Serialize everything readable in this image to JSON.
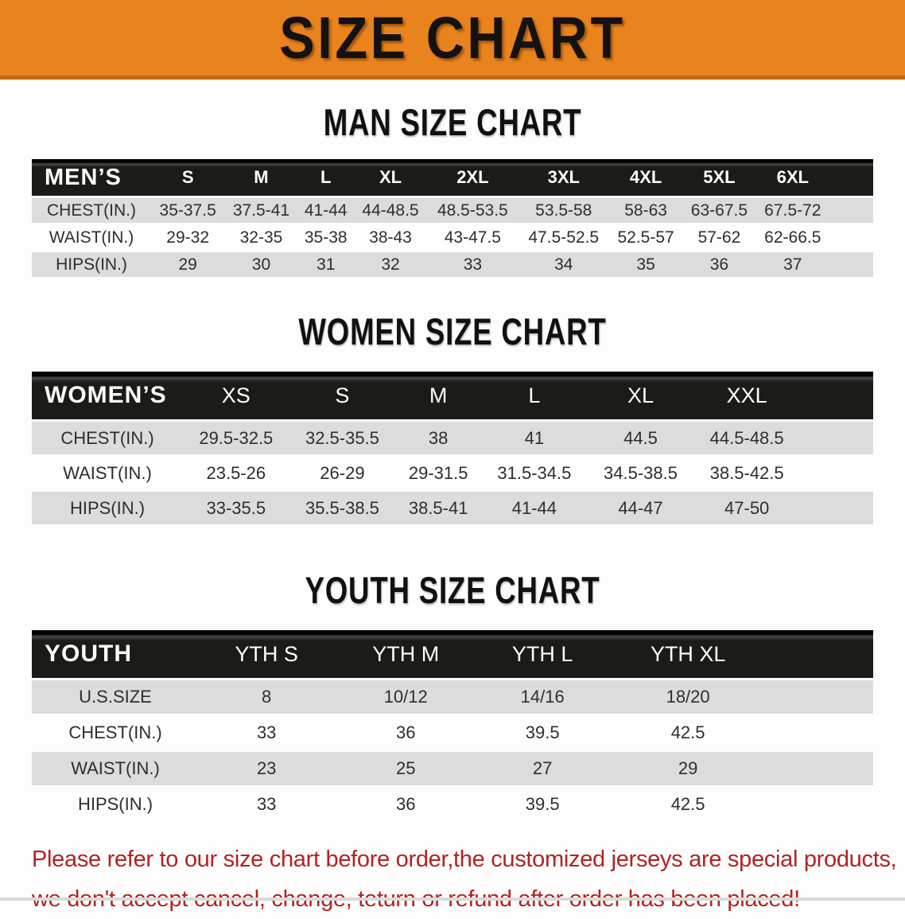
{
  "banner": {
    "title": "SIZE CHART",
    "bg_color": "#E8831D",
    "text_color": "#141210"
  },
  "sections": [
    {
      "heading": "MAN SIZE CHART",
      "header_label": "MEN’S",
      "columns": [
        "S",
        "M",
        "L",
        "XL",
        "2XL",
        "3XL",
        "4XL",
        "5XL",
        "6XL"
      ],
      "rows": [
        {
          "label": "CHEST(IN.)",
          "values": [
            "35-37.5",
            "37.5-41",
            "41-44",
            "44-48.5",
            "48.5-53.5",
            "53.5-58",
            "58-63",
            "63-67.5",
            "67.5-72"
          ]
        },
        {
          "label": "WAIST(IN.)",
          "values": [
            "29-32",
            "32-35",
            "35-38",
            "38-43",
            "43-47.5",
            "47.5-52.5",
            "52.5-57",
            "57-62",
            "62-66.5"
          ]
        },
        {
          "label": "HIPS(IN.)",
          "values": [
            "29",
            "30",
            "31",
            "32",
            "33",
            "34",
            "35",
            "36",
            "37"
          ]
        }
      ]
    },
    {
      "heading": "WOMEN SIZE CHART",
      "header_label": "WOMEN’S",
      "columns": [
        "XS",
        "S",
        "M",
        "L",
        "XL",
        "XXL"
      ],
      "rows": [
        {
          "label": "CHEST(IN.)",
          "values": [
            "29.5-32.5",
            "32.5-35.5",
            "38",
            "41",
            "44.5",
            "44.5-48.5"
          ]
        },
        {
          "label": "WAIST(IN.)",
          "values": [
            "23.5-26",
            "26-29",
            "29-31.5",
            "31.5-34.5",
            "34.5-38.5",
            "38.5-42.5"
          ]
        },
        {
          "label": "HIPS(IN.)",
          "values": [
            "33-35.5",
            "35.5-38.5",
            "38.5-41",
            "41-44",
            "44-47",
            "47-50"
          ]
        }
      ]
    },
    {
      "heading": "YOUTH SIZE CHART",
      "header_label": "YOUTH",
      "columns": [
        "YTH S",
        "YTH M",
        "YTH L",
        "YTH XL"
      ],
      "rows": [
        {
          "label": "U.S.SIZE",
          "values": [
            "8",
            "10/12",
            "14/16",
            "18/20"
          ]
        },
        {
          "label": "CHEST(IN.)",
          "values": [
            "33",
            "36",
            "39.5",
            "42.5"
          ]
        },
        {
          "label": "WAIST(IN.)",
          "values": [
            "23",
            "25",
            "27",
            "29"
          ]
        },
        {
          "label": "HIPS(IN.)",
          "values": [
            "33",
            "36",
            "39.5",
            "42.5"
          ]
        }
      ]
    }
  ],
  "disclaimer": {
    "line1": "Please refer to our size chart before order,the customized jerseys are special products,",
    "line2": "we don't accept cancel, change, teturn or refund after order has been placed!",
    "text_color": "#B22222"
  },
  "colors": {
    "banner_orange": "#E8831D",
    "banner_edge": "#C4690F",
    "table_header_black": "#1B1B18",
    "stripe_gray": "#DCDCDC",
    "stripe_white": "#FDFDFD",
    "value_text": "#2E2E2E"
  }
}
